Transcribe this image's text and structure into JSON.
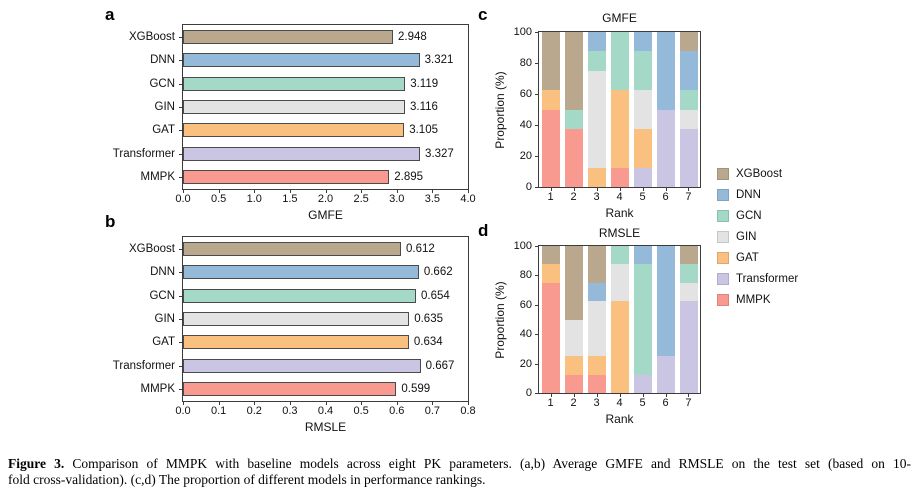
{
  "figure": {
    "panels": {
      "a": {
        "letter": "a"
      },
      "b": {
        "letter": "b"
      },
      "c": {
        "letter": "c"
      },
      "d": {
        "letter": "d"
      }
    },
    "caption": {
      "label": "Figure 3.",
      "line1": "Comparison of MMPK with baseline models across eight PK parameters. (a,b) Average GMFE and RMSLE on the test set (based on 10-",
      "line2": "fold cross-validation). (c,d) The proportion of different models in performance rankings."
    }
  },
  "models": [
    {
      "name": "XGBoost",
      "color": "#b9a88d"
    },
    {
      "name": "DNN",
      "color": "#94b9d9"
    },
    {
      "name": "GCN",
      "color": "#a3d9c6"
    },
    {
      "name": "GIN",
      "color": "#e3e3e3"
    },
    {
      "name": "GAT",
      "color": "#f9c080"
    },
    {
      "name": "Transformer",
      "color": "#c9c5e2"
    },
    {
      "name": "MMPK",
      "color": "#f89a90"
    }
  ],
  "chart_data": [
    {
      "id": "a",
      "type": "bar",
      "orientation": "horizontal",
      "xlabel": "GMFE",
      "categories": [
        "XGBoost",
        "DNN",
        "GCN",
        "GIN",
        "GAT",
        "Transformer",
        "MMPK"
      ],
      "values": [
        2.948,
        3.321,
        3.119,
        3.116,
        3.105,
        3.327,
        2.895
      ],
      "xlim": [
        0,
        4
      ],
      "xticks": [
        "0.0",
        "0.5",
        "1.0",
        "1.5",
        "2.0",
        "2.5",
        "3.0",
        "3.5",
        "4.0"
      ],
      "grid": false,
      "value_labels_shown": true
    },
    {
      "id": "b",
      "type": "bar",
      "orientation": "horizontal",
      "xlabel": "RMSLE",
      "categories": [
        "XGBoost",
        "DNN",
        "GCN",
        "GIN",
        "GAT",
        "Transformer",
        "MMPK"
      ],
      "values": [
        0.612,
        0.662,
        0.654,
        0.635,
        0.634,
        0.667,
        0.599
      ],
      "xlim": [
        0,
        0.8
      ],
      "xticks": [
        "0.0",
        "0.1",
        "0.2",
        "0.3",
        "0.4",
        "0.5",
        "0.6",
        "0.7",
        "0.8"
      ],
      "grid": false,
      "value_labels_shown": true
    },
    {
      "id": "c",
      "type": "stacked_bar",
      "title": "GMFE",
      "xlabel": "Rank",
      "ylabel": "Proportion (%)",
      "ylim": [
        0,
        100
      ],
      "yticks": [
        0,
        20,
        40,
        60,
        80,
        100
      ],
      "categories": [
        "1",
        "2",
        "3",
        "4",
        "5",
        "6",
        "7"
      ],
      "stack_order_bottom_to_top": [
        "MMPK",
        "Transformer",
        "GAT",
        "GIN",
        "GCN",
        "DNN",
        "XGBoost"
      ],
      "series": [
        {
          "name": "XGBoost",
          "values": [
            37.5,
            50,
            0,
            0,
            0,
            0,
            12.5
          ]
        },
        {
          "name": "DNN",
          "values": [
            0,
            0,
            12.5,
            0,
            12.5,
            50,
            25
          ]
        },
        {
          "name": "GCN",
          "values": [
            0,
            12.5,
            12.5,
            37.5,
            25,
            0,
            12.5
          ]
        },
        {
          "name": "GIN",
          "values": [
            0,
            0,
            62.5,
            0,
            25,
            0,
            12.5
          ]
        },
        {
          "name": "GAT",
          "values": [
            12.5,
            0,
            12.5,
            50,
            25,
            0,
            0
          ]
        },
        {
          "name": "Transformer",
          "values": [
            0,
            0,
            0,
            0,
            12.5,
            50,
            37.5
          ]
        },
        {
          "name": "MMPK",
          "values": [
            50,
            37.5,
            0,
            12.5,
            0,
            0,
            0
          ]
        }
      ],
      "legend_position": "right"
    },
    {
      "id": "d",
      "type": "stacked_bar",
      "title": "RMSLE",
      "xlabel": "Rank",
      "ylabel": "Proportion (%)",
      "ylim": [
        0,
        100
      ],
      "yticks": [
        0,
        20,
        40,
        60,
        80,
        100
      ],
      "categories": [
        "1",
        "2",
        "3",
        "4",
        "5",
        "6",
        "7"
      ],
      "stack_order_bottom_to_top": [
        "MMPK",
        "Transformer",
        "GAT",
        "GIN",
        "GCN",
        "DNN",
        "XGBoost"
      ],
      "series": [
        {
          "name": "XGBoost",
          "values": [
            12.5,
            50,
            25,
            0,
            0,
            0,
            12.5
          ]
        },
        {
          "name": "DNN",
          "values": [
            0,
            0,
            12.5,
            0,
            12.5,
            75,
            0
          ]
        },
        {
          "name": "GCN",
          "values": [
            0,
            0,
            0,
            12.5,
            75,
            0,
            12.5
          ]
        },
        {
          "name": "GIN",
          "values": [
            0,
            25,
            37.5,
            25,
            0,
            0,
            12.5
          ]
        },
        {
          "name": "GAT",
          "values": [
            12.5,
            12.5,
            12.5,
            62.5,
            0,
            0,
            0
          ]
        },
        {
          "name": "Transformer",
          "values": [
            0,
            0,
            0,
            0,
            12.5,
            25,
            62.5
          ]
        },
        {
          "name": "MMPK",
          "values": [
            75,
            12.5,
            12.5,
            0,
            0,
            0,
            0
          ]
        }
      ],
      "legend_position": "right"
    }
  ]
}
